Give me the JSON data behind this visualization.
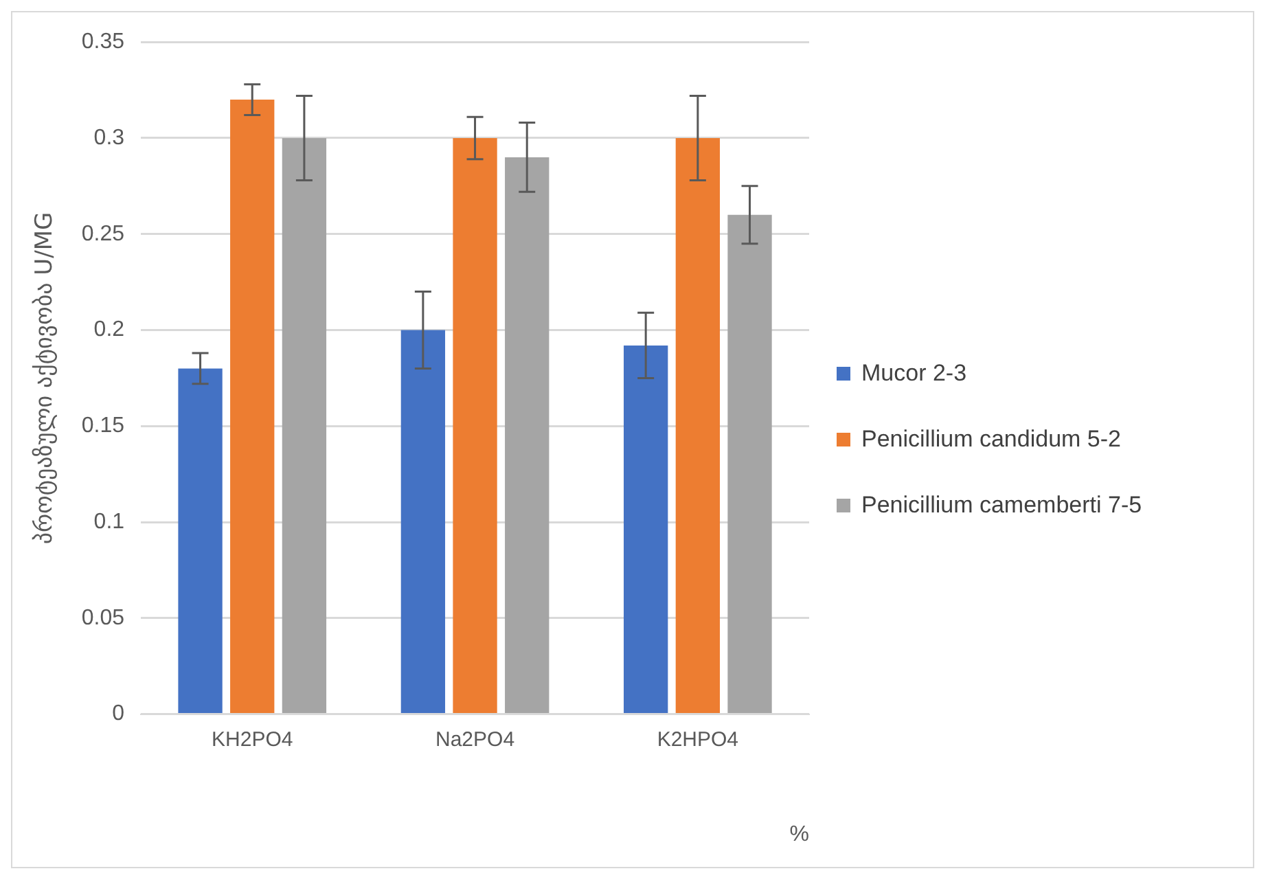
{
  "chart_data": {
    "type": "bar",
    "ylabel": "პროტეაზული აქტივობა U/MG",
    "xlabel": "%",
    "categories": [
      "KH2PO4",
      "Na2PO4",
      "K2HPO4"
    ],
    "series": [
      {
        "name": "Mucor 2-3",
        "color": "#4472c4",
        "values": [
          0.18,
          0.2,
          0.192
        ],
        "errors": [
          0.008,
          0.02,
          0.017
        ]
      },
      {
        "name": "Penicillium candidum 5-2",
        "color": "#ed7d31",
        "values": [
          0.32,
          0.3,
          0.3
        ],
        "errors": [
          0.008,
          0.011,
          0.022
        ]
      },
      {
        "name": "Penicillium camemberti 7-5",
        "color": "#a5a5a5",
        "values": [
          0.3,
          0.29,
          0.26
        ],
        "errors": [
          0.022,
          0.018,
          0.015
        ]
      }
    ],
    "ylim": [
      0,
      0.35
    ],
    "yticks": [
      0,
      0.05,
      0.1,
      0.15,
      0.2,
      0.25,
      0.3,
      0.35
    ],
    "grid": "y",
    "legend": "right"
  }
}
